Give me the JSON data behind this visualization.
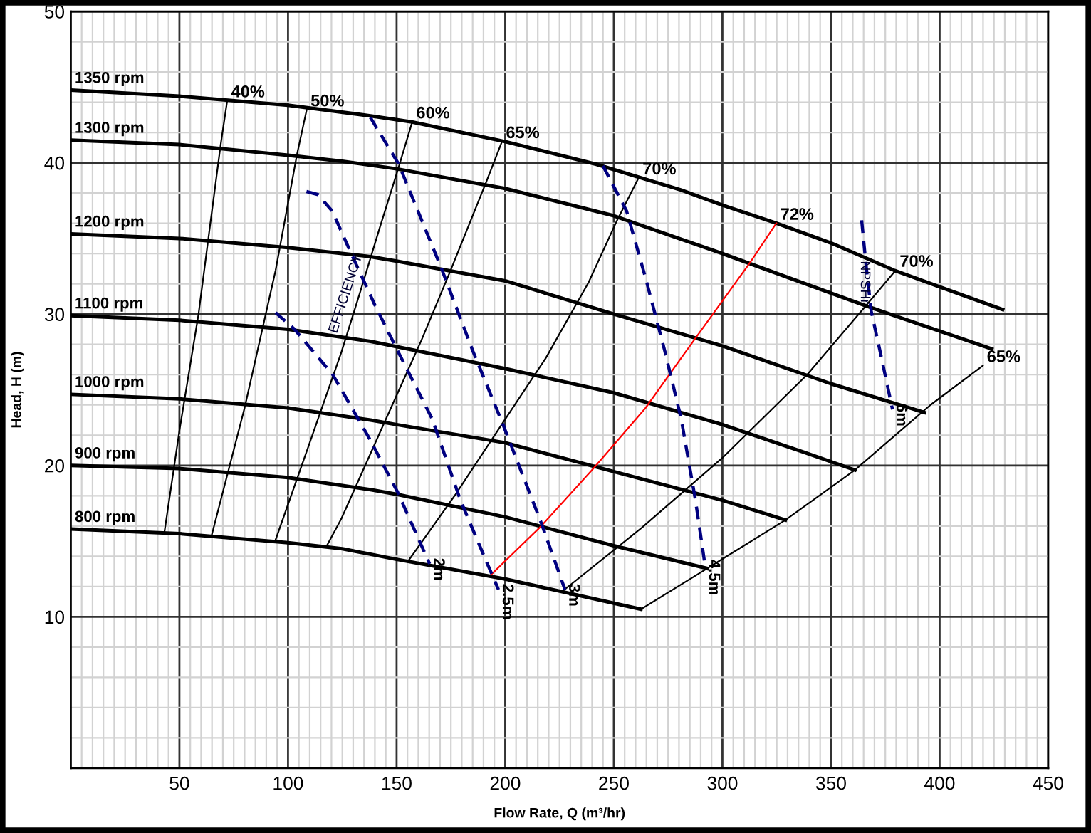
{
  "chart_data": {
    "type": "line",
    "xlabel": "Flow Rate, Q (m³/hr)",
    "ylabel": "Head, H (m)",
    "xlim": [
      0,
      450
    ],
    "ylim": [
      0,
      50
    ],
    "xticks": [
      {
        "value": 5,
        "label": null
      },
      {
        "value": 10,
        "label": null
      },
      {
        "value": 15,
        "label": null
      },
      {
        "value": 20,
        "label": null
      },
      {
        "value": 25,
        "label": null
      },
      {
        "value": 30,
        "label": null
      },
      {
        "value": 35,
        "label": null
      },
      {
        "value": 40,
        "label": null
      },
      {
        "value": 45,
        "label": null
      },
      50,
      {
        "value": 55,
        "label": null
      },
      {
        "value": 60,
        "label": null
      },
      {
        "value": 65,
        "label": null
      },
      {
        "value": 70,
        "label": null
      },
      {
        "value": 75,
        "label": null
      },
      {
        "value": 80,
        "label": null
      },
      {
        "value": 85,
        "label": null
      },
      {
        "value": 90,
        "label": null
      },
      {
        "value": 95,
        "label": null
      },
      100,
      {
        "value": 105,
        "label": null
      },
      {
        "value": 110,
        "label": null
      },
      {
        "value": 115,
        "label": null
      },
      {
        "value": 120,
        "label": null
      },
      {
        "value": 125,
        "label": null
      },
      {
        "value": 130,
        "label": null
      },
      {
        "value": 135,
        "label": null
      },
      {
        "value": 140,
        "label": null
      },
      {
        "value": 145,
        "label": null
      },
      150,
      {
        "value": 155,
        "label": null
      },
      {
        "value": 160,
        "label": null
      },
      {
        "value": 165,
        "label": null
      },
      {
        "value": 170,
        "label": null
      },
      {
        "value": 175,
        "label": null
      },
      {
        "value": 180,
        "label": null
      },
      {
        "value": 185,
        "label": null
      },
      {
        "value": 190,
        "label": null
      },
      {
        "value": 195,
        "label": null
      },
      200,
      {
        "value": 205,
        "label": null
      },
      {
        "value": 210,
        "label": null
      },
      {
        "value": 215,
        "label": null
      },
      {
        "value": 220,
        "label": null
      },
      {
        "value": 225,
        "label": null
      },
      {
        "value": 230,
        "label": null
      },
      {
        "value": 235,
        "label": null
      },
      {
        "value": 240,
        "label": null
      },
      {
        "value": 245,
        "label": null
      },
      250,
      {
        "value": 255,
        "label": null
      },
      {
        "value": 260,
        "label": null
      },
      {
        "value": 265,
        "label": null
      },
      {
        "value": 270,
        "label": null
      },
      {
        "value": 275,
        "label": null
      },
      {
        "value": 280,
        "label": null
      },
      {
        "value": 285,
        "label": null
      },
      {
        "value": 290,
        "label": null
      },
      {
        "value": 295,
        "label": null
      },
      300,
      {
        "value": 305,
        "label": null
      },
      {
        "value": 310,
        "label": null
      },
      {
        "value": 315,
        "label": null
      },
      {
        "value": 320,
        "label": null
      },
      {
        "value": 325,
        "label": null
      },
      {
        "value": 330,
        "label": null
      },
      {
        "value": 335,
        "label": null
      },
      {
        "value": 340,
        "label": null
      },
      {
        "value": 345,
        "label": null
      },
      350,
      {
        "value": 355,
        "label": null
      },
      {
        "value": 360,
        "label": null
      },
      {
        "value": 365,
        "label": null
      },
      {
        "value": 370,
        "label": null
      },
      {
        "value": 375,
        "label": null
      },
      {
        "value": 380,
        "label": null
      },
      {
        "value": 385,
        "label": null
      },
      {
        "value": 390,
        "label": null
      },
      {
        "value": 395,
        "label": null
      },
      400,
      {
        "value": 405,
        "label": null
      },
      {
        "value": 410,
        "label": null
      },
      {
        "value": 415,
        "label": null
      },
      {
        "value": 420,
        "label": null
      },
      {
        "value": 425,
        "label": null
      },
      {
        "value": 430,
        "label": null
      },
      {
        "value": 435,
        "label": null
      },
      {
        "value": 440,
        "label": null
      },
      {
        "value": 445,
        "label": null
      },
      450
    ],
    "yticks": [
      {
        "value": 2,
        "label": null
      },
      {
        "value": 4,
        "label": null
      },
      {
        "value": 6,
        "label": null
      },
      {
        "value": 8,
        "label": null
      },
      10,
      {
        "value": 12,
        "label": null
      },
      {
        "value": 14,
        "label": null
      },
      {
        "value": 16,
        "label": null
      },
      {
        "value": 18,
        "label": null
      },
      20,
      {
        "value": 22,
        "label": null
      },
      {
        "value": 24,
        "label": null
      },
      {
        "value": 26,
        "label": null
      },
      {
        "value": 28,
        "label": null
      },
      30,
      {
        "value": 32,
        "label": null
      },
      {
        "value": 34,
        "label": null
      },
      {
        "value": 36,
        "label": null
      },
      {
        "value": 38,
        "label": null
      },
      40,
      {
        "value": 42,
        "label": null
      },
      {
        "value": 44,
        "label": null
      },
      {
        "value": 46,
        "label": null
      },
      {
        "value": 48,
        "label": null
      },
      50
    ],
    "grid": true,
    "marker": "none",
    "line_style": "solid",
    "annotations": [
      "EFFICIENCY",
      {
        "text": "NPSHr",
        "x": 365.4,
        "y": 32.1
      }
    ],
    "series": [
      {
        "name": "1350 rpm",
        "color": "#000000",
        "x": [
          0,
          50,
          100,
          138,
          157,
          200,
          242,
          281,
          300,
          325,
          350,
          379,
          400,
          429
        ],
        "values": [
          44.8,
          44.4,
          43.8,
          43.1,
          42.7,
          41.4,
          39.9,
          38.2,
          37.2,
          36.0,
          34.7,
          32.9,
          31.8,
          30.3
        ]
      },
      {
        "name": "1300 rpm",
        "color": "#000000",
        "x": [
          0,
          50,
          100,
          125,
          150,
          200,
          250,
          300,
          365,
          424
        ],
        "values": [
          41.5,
          41.2,
          40.5,
          40.1,
          39.6,
          38.3,
          36.5,
          34.0,
          30.6,
          27.7
        ]
      },
      {
        "name": "1200 rpm",
        "color": "#000000",
        "x": [
          0,
          50,
          100,
          138,
          150,
          200,
          250,
          300,
          350,
          393
        ],
        "values": [
          35.3,
          35.0,
          34.4,
          33.8,
          33.5,
          32.2,
          30.0,
          27.9,
          25.4,
          23.5
        ]
      },
      {
        "name": "1100 rpm",
        "color": "#000000",
        "x": [
          0,
          50,
          100,
          138,
          200,
          250,
          300,
          337,
          361
        ],
        "values": [
          29.9,
          29.6,
          29.0,
          28.2,
          26.4,
          24.8,
          22.7,
          20.9,
          19.7
        ]
      },
      {
        "name": "1000 rpm",
        "color": "#000000",
        "x": [
          0,
          50,
          100,
          138,
          150,
          200,
          250,
          300,
          329
        ],
        "values": [
          24.7,
          24.4,
          23.8,
          23.0,
          22.7,
          21.5,
          19.6,
          17.7,
          16.4
        ]
      },
      {
        "name": "900 rpm",
        "color": "#000000",
        "x": [
          0,
          50,
          100,
          138,
          150,
          200,
          250,
          293
        ],
        "values": [
          20.0,
          19.8,
          19.2,
          18.4,
          18.1,
          16.6,
          14.7,
          13.2
        ]
      },
      {
        "name": "800 rpm",
        "color": "#000000",
        "x": [
          0,
          50,
          100,
          125,
          150,
          200,
          250,
          262.5
        ],
        "values": [
          15.8,
          15.5,
          14.9,
          14.5,
          13.8,
          12.5,
          10.9,
          10.5
        ]
      },
      {
        "name": "40%",
        "color": "#000000",
        "x": [
          43,
          50,
          58.8,
          63.6,
          69,
          72
        ],
        "values": [
          15.5,
          22.3,
          30.0,
          35.3,
          41.2,
          44.1
        ]
      },
      {
        "name": "50%",
        "color": "#000000",
        "x": [
          64.7,
          80,
          94.3,
          104.2,
          108.6
        ],
        "values": [
          15.3,
          23.8,
          32.9,
          40.6,
          43.5
        ]
      },
      {
        "name": "60%",
        "color": "#000000",
        "x": [
          94.3,
          109.5,
          124.6,
          133.3,
          142,
          150.7,
          157.2
        ],
        "values": [
          15.1,
          21.3,
          27.5,
          31.5,
          35.6,
          39.6,
          42.7
        ]
      },
      {
        "name": "65%",
        "color": "#000000",
        "x": [
          117.5,
          124.6,
          143,
          161.5,
          174.6,
          190.9,
          198.5
        ],
        "values": [
          14.6,
          16.5,
          22.4,
          28.3,
          32.8,
          38.6,
          41.4
        ]
      },
      {
        "name": "70%",
        "color": "#000000",
        "x": [
          155.4,
          177.2,
          200.2,
          218.7,
          238.4,
          251.5,
          261.4
        ],
        "values": [
          13.7,
          18.1,
          23.1,
          27.1,
          32.1,
          36.2,
          39.0
        ]
      },
      {
        "name": "72%",
        "color": "#ff0000",
        "x": [
          193.6,
          216.6,
          240.6,
          264.6,
          282,
          312.7,
          324.8
        ],
        "values": [
          12.8,
          16.0,
          19.8,
          23.8,
          27.3,
          33.4,
          36.0
        ]
      },
      {
        "name": "70%",
        "color": "#000000",
        "x": [
          226.4,
          263,
          300.7,
          339,
          366.3,
          379.8
        ],
        "values": [
          11.7,
          15.9,
          20.6,
          26.0,
          30.6,
          32.9
        ]
      },
      {
        "name": "65%",
        "color": "#000000",
        "x": [
          262.5,
          293,
          329,
          361,
          395.8,
          419.9
        ],
        "values": [
          10.5,
          13.2,
          16.4,
          19.7,
          24.0,
          26.6
        ]
      },
      {
        "name": "2m",
        "color": "#000080",
        "line_style": "dashed",
        "x": [
          94.3,
          103,
          120.6,
          137.8,
          150.6,
          165.2
        ],
        "values": [
          30.1,
          29.0,
          26.0,
          21.7,
          18.2,
          13.5
        ]
      },
      {
        "name": "2.5m",
        "color": "#000080",
        "line_style": "dashed",
        "x": [
          108.5,
          113.8,
          120.4,
          129.1,
          140,
          149,
          166.3,
          179.4,
          190.3,
          196.9
        ],
        "values": [
          38.1,
          37.9,
          36.8,
          34.0,
          30.6,
          28.0,
          23.1,
          17.7,
          14.0,
          11.8
        ]
      },
      {
        "name": "3m",
        "color": "#000080",
        "line_style": "dashed",
        "x": [
          137.9,
          151,
          170.7,
          185,
          199,
          216.6,
          227.5
        ],
        "values": [
          43.0,
          39.9,
          33.0,
          27.6,
          22.7,
          16.2,
          11.8
        ]
      },
      {
        "name": "4.5m",
        "color": "#000080",
        "line_style": "dashed",
        "x": [
          245,
          255.9,
          264.6,
          273.4,
          281,
          287.6,
          292
        ],
        "values": [
          39.8,
          36.8,
          32.4,
          27.6,
          23.1,
          17.7,
          13.4
        ]
      },
      {
        "name": "6m",
        "color": "#000080",
        "line_style": "dashed",
        "x": [
          364.1,
          366.3,
          368.5,
          372.8,
          378.3
        ],
        "values": [
          36.2,
          33.0,
          30.2,
          27.4,
          23.7
        ]
      }
    ]
  }
}
